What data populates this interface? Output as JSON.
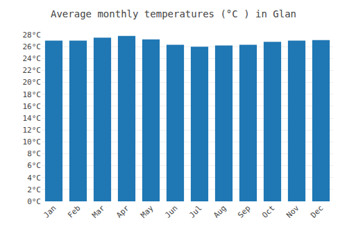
{
  "chart_data": {
    "type": "bar",
    "title": "Average monthly temperatures (°C ) in Glan",
    "categories": [
      "Jan",
      "Feb",
      "Mar",
      "Apr",
      "May",
      "Jun",
      "Jul",
      "Aug",
      "Sep",
      "Oct",
      "Nov",
      "Dec"
    ],
    "values": [
      27.0,
      27.0,
      27.5,
      27.8,
      27.2,
      26.3,
      26.0,
      26.2,
      26.3,
      26.8,
      27.0,
      27.1
    ],
    "ylim": [
      0,
      28
    ],
    "yticks": [
      {
        "value": 0,
        "label": "0°C"
      },
      {
        "value": 2,
        "label": "2°C"
      },
      {
        "value": 4,
        "label": "4°C"
      },
      {
        "value": 6,
        "label": "6°C"
      },
      {
        "value": 8,
        "label": "8°C"
      },
      {
        "value": 10,
        "label": "10°C"
      },
      {
        "value": 12,
        "label": "12°C"
      },
      {
        "value": 14,
        "label": "14°C"
      },
      {
        "value": 16,
        "label": "16°C"
      },
      {
        "value": 18,
        "label": "18°C"
      },
      {
        "value": 20,
        "label": "20°C"
      },
      {
        "value": 22,
        "label": "22°C"
      },
      {
        "value": 24,
        "label": "24°C"
      },
      {
        "value": 26,
        "label": "26°C"
      },
      {
        "value": 28,
        "label": "28°C"
      }
    ],
    "grid": true
  }
}
